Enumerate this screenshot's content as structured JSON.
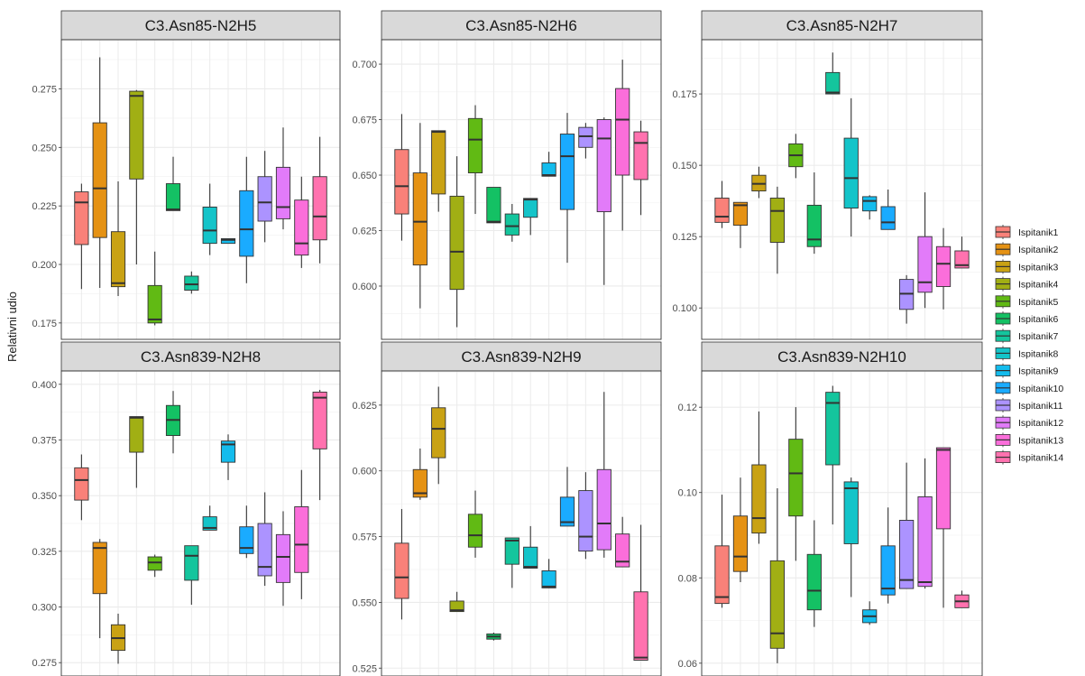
{
  "y_axis_label": "Relativni udio",
  "legend": {
    "entries": [
      "Ispitanik1",
      "Ispitanik2",
      "Ispitanik3",
      "Ispitanik4",
      "Ispitanik5",
      "Ispitanik6",
      "Ispitanik7",
      "Ispitanik8",
      "Ispitanik9",
      "Ispitanik10",
      "Ispitanik11",
      "Ispitanik12",
      "Ispitanik13",
      "Ispitanik14"
    ],
    "colors": [
      "#F8766D",
      "#E38900",
      "#C49A00",
      "#99A800",
      "#53B400",
      "#00BC56",
      "#00C094",
      "#00BFC4",
      "#00B6EB",
      "#06A4FF",
      "#A58AFF",
      "#DF70F8",
      "#FB61D7",
      "#FF66A8"
    ],
    "placement": "right"
  },
  "chart_data": [
    {
      "type": "boxplot",
      "title": "C3.Asn85-N2H5",
      "grid": true,
      "ylim": [
        0.168,
        0.296
      ],
      "yticks": [
        0.175,
        0.2,
        0.225,
        0.25,
        0.275
      ],
      "ytick_labels": [
        "0.175",
        "0.200",
        "0.225",
        "0.250",
        "0.275"
      ],
      "series": [
        {
          "q1": 0.2085,
          "median": 0.2265,
          "q3": 0.231,
          "whisker_low": 0.1895,
          "whisker_high": 0.2345
        },
        {
          "q1": 0.2115,
          "median": 0.2325,
          "q3": 0.2605,
          "whisker_low": 0.19,
          "whisker_high": 0.2885
        },
        {
          "q1": 0.1905,
          "median": 0.192,
          "q3": 0.214,
          "whisker_low": 0.1865,
          "whisker_high": 0.2355
        },
        {
          "q1": 0.2365,
          "median": 0.272,
          "q3": 0.274,
          "whisker_low": 0.2,
          "whisker_high": 0.2745
        },
        {
          "q1": 0.175,
          "median": 0.1765,
          "q3": 0.191,
          "whisker_low": 0.174,
          "whisker_high": 0.2055
        },
        {
          "q1": 0.223,
          "median": 0.2235,
          "q3": 0.2345,
          "whisker_low": 0.223,
          "whisker_high": 0.246
        },
        {
          "q1": 0.189,
          "median": 0.1915,
          "q3": 0.195,
          "whisker_low": 0.1875,
          "whisker_high": 0.197
        },
        {
          "q1": 0.209,
          "median": 0.2145,
          "q3": 0.2245,
          "whisker_low": 0.204,
          "whisker_high": 0.2345
        },
        {
          "q1": 0.209,
          "median": 0.2105,
          "q3": 0.211,
          "whisker_low": 0.209,
          "whisker_high": 0.211
        },
        {
          "q1": 0.2035,
          "median": 0.215,
          "q3": 0.2315,
          "whisker_low": 0.192,
          "whisker_high": 0.246
        },
        {
          "q1": 0.2185,
          "median": 0.2265,
          "q3": 0.2375,
          "whisker_low": 0.2095,
          "whisker_high": 0.2485
        },
        {
          "q1": 0.2195,
          "median": 0.2245,
          "q3": 0.2415,
          "whisker_low": 0.215,
          "whisker_high": 0.2585
        },
        {
          "q1": 0.204,
          "median": 0.209,
          "q3": 0.2275,
          "whisker_low": 0.1985,
          "whisker_high": 0.2375
        },
        {
          "q1": 0.2105,
          "median": 0.2205,
          "q3": 0.2375,
          "whisker_low": 0.2005,
          "whisker_high": 0.2545
        }
      ]
    },
    {
      "type": "boxplot",
      "title": "C3.Asn85-N2H6",
      "grid": true,
      "ylim": [
        0.576,
        0.711
      ],
      "yticks": [
        0.6,
        0.625,
        0.65,
        0.675,
        0.7
      ],
      "ytick_labels": [
        "0.600",
        "0.625",
        "0.650",
        "0.675",
        "0.700"
      ],
      "series": [
        {
          "q1": 0.6325,
          "median": 0.645,
          "q3": 0.6615,
          "whisker_low": 0.6205,
          "whisker_high": 0.6775
        },
        {
          "q1": 0.6095,
          "median": 0.629,
          "q3": 0.651,
          "whisker_low": 0.59,
          "whisker_high": 0.6735
        },
        {
          "q1": 0.6415,
          "median": 0.6695,
          "q3": 0.67,
          "whisker_low": 0.6335,
          "whisker_high": 0.67
        },
        {
          "q1": 0.5985,
          "median": 0.6155,
          "q3": 0.6405,
          "whisker_low": 0.5815,
          "whisker_high": 0.6585
        },
        {
          "q1": 0.651,
          "median": 0.666,
          "q3": 0.6755,
          "whisker_low": 0.6325,
          "whisker_high": 0.6815
        },
        {
          "q1": 0.6285,
          "median": 0.629,
          "q3": 0.6445,
          "whisker_low": 0.6285,
          "whisker_high": 0.6445
        },
        {
          "q1": 0.623,
          "median": 0.627,
          "q3": 0.6325,
          "whisker_low": 0.62,
          "whisker_high": 0.637
        },
        {
          "q1": 0.631,
          "median": 0.639,
          "q3": 0.6395,
          "whisker_low": 0.623,
          "whisker_high": 0.6395
        },
        {
          "q1": 0.6495,
          "median": 0.65,
          "q3": 0.6555,
          "whisker_low": 0.6495,
          "whisker_high": 0.6605
        },
        {
          "q1": 0.6345,
          "median": 0.6585,
          "q3": 0.6685,
          "whisker_low": 0.6105,
          "whisker_high": 0.678
        },
        {
          "q1": 0.6625,
          "median": 0.6675,
          "q3": 0.6715,
          "whisker_low": 0.6575,
          "whisker_high": 0.6735
        },
        {
          "q1": 0.6335,
          "median": 0.6665,
          "q3": 0.675,
          "whisker_low": 0.6005,
          "whisker_high": 0.676
        },
        {
          "q1": 0.65,
          "median": 0.675,
          "q3": 0.689,
          "whisker_low": 0.625,
          "whisker_high": 0.702
        },
        {
          "q1": 0.648,
          "median": 0.6645,
          "q3": 0.6695,
          "whisker_low": 0.632,
          "whisker_high": 0.6745
        }
      ]
    },
    {
      "type": "boxplot",
      "title": "C3.Asn85-N2H7",
      "grid": true,
      "ylim": [
        0.089,
        0.194
      ],
      "yticks": [
        0.1,
        0.125,
        0.15,
        0.175
      ],
      "ytick_labels": [
        "0.100",
        "0.125",
        "0.150",
        "0.175"
      ],
      "series": [
        {
          "q1": 0.13,
          "median": 0.132,
          "q3": 0.1385,
          "whisker_low": 0.128,
          "whisker_high": 0.1445
        },
        {
          "q1": 0.129,
          "median": 0.136,
          "q3": 0.137,
          "whisker_low": 0.121,
          "whisker_high": 0.137
        },
        {
          "q1": 0.141,
          "median": 0.1435,
          "q3": 0.1465,
          "whisker_low": 0.1385,
          "whisker_high": 0.1495
        },
        {
          "q1": 0.123,
          "median": 0.134,
          "q3": 0.1385,
          "whisker_low": 0.112,
          "whisker_high": 0.1425
        },
        {
          "q1": 0.1495,
          "median": 0.1535,
          "q3": 0.1575,
          "whisker_low": 0.1455,
          "whisker_high": 0.161
        },
        {
          "q1": 0.1215,
          "median": 0.124,
          "q3": 0.136,
          "whisker_low": 0.119,
          "whisker_high": 0.1475
        },
        {
          "q1": 0.175,
          "median": 0.1755,
          "q3": 0.1825,
          "whisker_low": 0.175,
          "whisker_high": 0.1895
        },
        {
          "q1": 0.135,
          "median": 0.1455,
          "q3": 0.1595,
          "whisker_low": 0.125,
          "whisker_high": 0.1735
        },
        {
          "q1": 0.134,
          "median": 0.1375,
          "q3": 0.139,
          "whisker_low": 0.131,
          "whisker_high": 0.1395
        },
        {
          "q1": 0.1275,
          "median": 0.13,
          "q3": 0.1355,
          "whisker_low": 0.1275,
          "whisker_high": 0.1415
        },
        {
          "q1": 0.0995,
          "median": 0.105,
          "q3": 0.11,
          "whisker_low": 0.0945,
          "whisker_high": 0.1115
        },
        {
          "q1": 0.1055,
          "median": 0.109,
          "q3": 0.125,
          "whisker_low": 0.1,
          "whisker_high": 0.1405
        },
        {
          "q1": 0.1075,
          "median": 0.1155,
          "q3": 0.1215,
          "whisker_low": 0.0995,
          "whisker_high": 0.128
        },
        {
          "q1": 0.114,
          "median": 0.115,
          "q3": 0.12,
          "whisker_low": 0.114,
          "whisker_high": 0.125
        }
      ]
    },
    {
      "type": "boxplot",
      "title": "C3.Asn839-N2H8",
      "grid": true,
      "ylim": [
        0.269,
        0.406
      ],
      "yticks": [
        0.275,
        0.3,
        0.325,
        0.35,
        0.375,
        0.4
      ],
      "ytick_labels": [
        "0.275",
        "0.300",
        "0.325",
        "0.350",
        "0.375",
        "0.400"
      ],
      "series": [
        {
          "q1": 0.348,
          "median": 0.357,
          "q3": 0.3625,
          "whisker_low": 0.339,
          "whisker_high": 0.3685
        },
        {
          "q1": 0.306,
          "median": 0.3265,
          "q3": 0.329,
          "whisker_low": 0.286,
          "whisker_high": 0.3305
        },
        {
          "q1": 0.2805,
          "median": 0.286,
          "q3": 0.292,
          "whisker_low": 0.2745,
          "whisker_high": 0.297
        },
        {
          "q1": 0.3695,
          "median": 0.385,
          "q3": 0.3855,
          "whisker_low": 0.3535,
          "whisker_high": 0.3855
        },
        {
          "q1": 0.3165,
          "median": 0.32,
          "q3": 0.3225,
          "whisker_low": 0.3135,
          "whisker_high": 0.3235
        },
        {
          "q1": 0.377,
          "median": 0.384,
          "q3": 0.3905,
          "whisker_low": 0.369,
          "whisker_high": 0.397
        },
        {
          "q1": 0.312,
          "median": 0.323,
          "q3": 0.3275,
          "whisker_low": 0.301,
          "whisker_high": 0.3275
        },
        {
          "q1": 0.3345,
          "median": 0.3355,
          "q3": 0.3405,
          "whisker_low": 0.3345,
          "whisker_high": 0.3455
        },
        {
          "q1": 0.365,
          "median": 0.373,
          "q3": 0.3745,
          "whisker_low": 0.357,
          "whisker_high": 0.3775
        },
        {
          "q1": 0.324,
          "median": 0.3265,
          "q3": 0.336,
          "whisker_low": 0.322,
          "whisker_high": 0.3455
        },
        {
          "q1": 0.314,
          "median": 0.318,
          "q3": 0.3375,
          "whisker_low": 0.3095,
          "whisker_high": 0.3515
        },
        {
          "q1": 0.311,
          "median": 0.3225,
          "q3": 0.3325,
          "whisker_low": 0.3005,
          "whisker_high": 0.343
        },
        {
          "q1": 0.3155,
          "median": 0.328,
          "q3": 0.345,
          "whisker_low": 0.3035,
          "whisker_high": 0.3615
        },
        {
          "q1": 0.371,
          "median": 0.394,
          "q3": 0.3965,
          "whisker_low": 0.348,
          "whisker_high": 0.3975
        }
      ]
    },
    {
      "type": "boxplot",
      "title": "C3.Asn839-N2H9",
      "grid": true,
      "ylim": [
        0.522,
        0.638
      ],
      "yticks": [
        0.525,
        0.55,
        0.575,
        0.6,
        0.625
      ],
      "ytick_labels": [
        "0.525",
        "0.550",
        "0.575",
        "0.600",
        "0.625"
      ],
      "series": [
        {
          "q1": 0.5515,
          "median": 0.5595,
          "q3": 0.5725,
          "whisker_low": 0.5435,
          "whisker_high": 0.5855
        },
        {
          "q1": 0.59,
          "median": 0.5915,
          "q3": 0.6005,
          "whisker_low": 0.589,
          "whisker_high": 0.6085
        },
        {
          "q1": 0.605,
          "median": 0.616,
          "q3": 0.624,
          "whisker_low": 0.595,
          "whisker_high": 0.632
        },
        {
          "q1": 0.5465,
          "median": 0.547,
          "q3": 0.5505,
          "whisker_low": 0.5465,
          "whisker_high": 0.554
        },
        {
          "q1": 0.571,
          "median": 0.5755,
          "q3": 0.5835,
          "whisker_low": 0.567,
          "whisker_high": 0.5925
        },
        {
          "q1": 0.536,
          "median": 0.537,
          "q3": 0.538,
          "whisker_low": 0.5355,
          "whisker_high": 0.5385
        },
        {
          "q1": 0.5645,
          "median": 0.5735,
          "q3": 0.5745,
          "whisker_low": 0.5555,
          "whisker_high": 0.5745
        },
        {
          "q1": 0.563,
          "median": 0.5635,
          "q3": 0.571,
          "whisker_low": 0.563,
          "whisker_high": 0.579
        },
        {
          "q1": 0.5555,
          "median": 0.556,
          "q3": 0.562,
          "whisker_low": 0.5555,
          "whisker_high": 0.5665
        },
        {
          "q1": 0.579,
          "median": 0.5805,
          "q3": 0.59,
          "whisker_low": 0.579,
          "whisker_high": 0.6015
        },
        {
          "q1": 0.5695,
          "median": 0.575,
          "q3": 0.5925,
          "whisker_low": 0.5665,
          "whisker_high": 0.5995
        },
        {
          "q1": 0.57,
          "median": 0.58,
          "q3": 0.6005,
          "whisker_low": 0.567,
          "whisker_high": 0.63
        },
        {
          "q1": 0.5635,
          "median": 0.5655,
          "q3": 0.576,
          "whisker_low": 0.5635,
          "whisker_high": 0.5825
        },
        {
          "q1": 0.528,
          "median": 0.529,
          "q3": 0.554,
          "whisker_low": 0.528,
          "whisker_high": 0.5795
        }
      ]
    },
    {
      "type": "boxplot",
      "title": "C3.Asn839-N2H10",
      "grid": true,
      "ylim": [
        0.057,
        0.1285
      ],
      "yticks": [
        0.06,
        0.08,
        0.1,
        0.12
      ],
      "ytick_labels": [
        "0.06",
        "0.08",
        "0.10",
        "0.12"
      ],
      "series": [
        {
          "q1": 0.074,
          "median": 0.0755,
          "q3": 0.0875,
          "whisker_low": 0.073,
          "whisker_high": 0.0995
        },
        {
          "q1": 0.0815,
          "median": 0.085,
          "q3": 0.0945,
          "whisker_low": 0.079,
          "whisker_high": 0.1035
        },
        {
          "q1": 0.0905,
          "median": 0.094,
          "q3": 0.1065,
          "whisker_low": 0.088,
          "whisker_high": 0.119
        },
        {
          "q1": 0.0635,
          "median": 0.067,
          "q3": 0.084,
          "whisker_low": 0.06,
          "whisker_high": 0.101
        },
        {
          "q1": 0.0945,
          "median": 0.1045,
          "q3": 0.1125,
          "whisker_low": 0.084,
          "whisker_high": 0.12
        },
        {
          "q1": 0.0725,
          "median": 0.077,
          "q3": 0.0855,
          "whisker_low": 0.0685,
          "whisker_high": 0.0935
        },
        {
          "q1": 0.1065,
          "median": 0.121,
          "q3": 0.1235,
          "whisker_low": 0.0925,
          "whisker_high": 0.125
        },
        {
          "q1": 0.088,
          "median": 0.101,
          "q3": 0.1025,
          "whisker_low": 0.0755,
          "whisker_high": 0.1035
        },
        {
          "q1": 0.0695,
          "median": 0.071,
          "q3": 0.0725,
          "whisker_low": 0.069,
          "whisker_high": 0.0745
        },
        {
          "q1": 0.076,
          "median": 0.0775,
          "q3": 0.0875,
          "whisker_low": 0.074,
          "whisker_high": 0.0965
        },
        {
          "q1": 0.0775,
          "median": 0.0795,
          "q3": 0.0935,
          "whisker_low": 0.0775,
          "whisker_high": 0.107
        },
        {
          "q1": 0.078,
          "median": 0.079,
          "q3": 0.099,
          "whisker_low": 0.0775,
          "whisker_high": 0.108
        },
        {
          "q1": 0.0915,
          "median": 0.11,
          "q3": 0.1105,
          "whisker_low": 0.073,
          "whisker_high": 0.1105
        },
        {
          "q1": 0.073,
          "median": 0.0745,
          "q3": 0.076,
          "whisker_low": 0.073,
          "whisker_high": 0.077
        }
      ]
    }
  ]
}
